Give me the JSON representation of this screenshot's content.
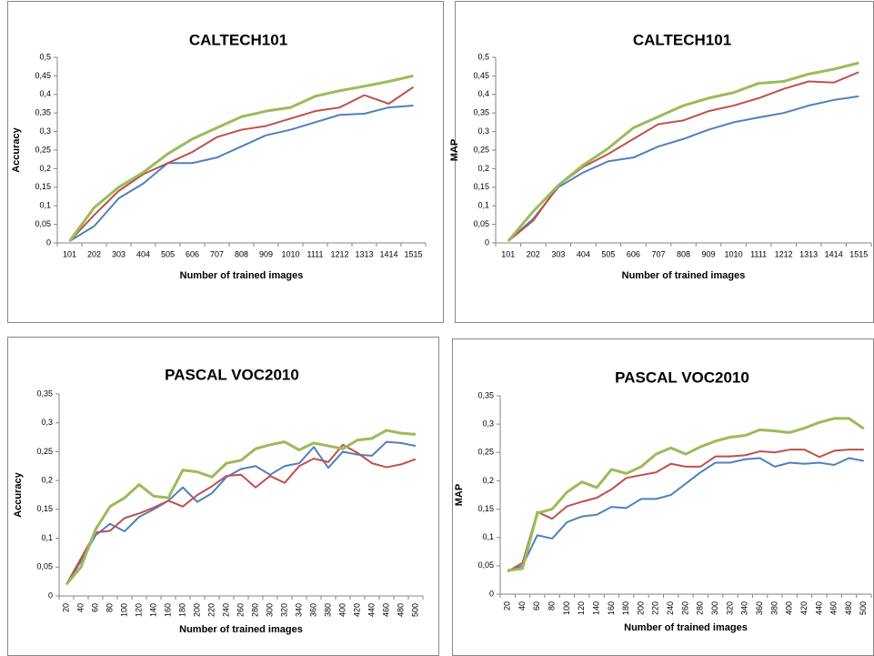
{
  "chart_data": [
    {
      "type": "line",
      "title": "CALTECH101",
      "x_label": "Number of trained images",
      "y_label": "Accuracy",
      "categories": [
        101,
        202,
        303,
        404,
        505,
        606,
        707,
        808,
        909,
        1010,
        1111,
        1212,
        1313,
        1414,
        1515
      ],
      "series": [
        {
          "color": "#4f81bd",
          "values": [
            0.005,
            0.045,
            0.12,
            0.16,
            0.215,
            0.215,
            0.23,
            0.26,
            0.29,
            0.305,
            0.325,
            0.345,
            0.348,
            0.365,
            0.37
          ]
        },
        {
          "color": "#c0504d",
          "values": [
            0.005,
            0.075,
            0.14,
            0.185,
            0.215,
            0.245,
            0.285,
            0.305,
            0.315,
            0.335,
            0.355,
            0.365,
            0.398,
            0.375,
            0.42
          ]
        },
        {
          "color": "#9bbb59",
          "values": [
            0.005,
            0.095,
            0.15,
            0.19,
            0.24,
            0.28,
            0.31,
            0.34,
            0.355,
            0.365,
            0.395,
            0.41,
            0.422,
            0.435,
            0.45
          ]
        }
      ],
      "ylim": [
        0,
        0.5
      ],
      "yticks": [
        0,
        {
          "value": 0.05,
          "label": "0,05"
        },
        {
          "value": 0.1,
          "label": "0,1"
        },
        {
          "value": 0.15,
          "label": "0,15"
        },
        {
          "value": 0.2,
          "label": "0,2"
        },
        {
          "value": 0.25,
          "label": "0,25"
        },
        {
          "value": 0.3,
          "label": "0,3"
        },
        {
          "value": 0.35,
          "label": "0,35"
        },
        {
          "value": 0.4,
          "label": "0,4"
        },
        {
          "value": 0.45,
          "label": "0,45"
        },
        {
          "value": 0.5,
          "label": "0,5"
        }
      ]
    },
    {
      "type": "line",
      "title": "CALTECH101",
      "x_label": "Number of trained images",
      "y_label": "MAP",
      "categories": [
        101,
        202,
        303,
        404,
        505,
        606,
        707,
        808,
        909,
        1010,
        1111,
        1212,
        1313,
        1414,
        1515
      ],
      "series": [
        {
          "color": "#4f81bd",
          "values": [
            0.005,
            0.065,
            0.15,
            0.19,
            0.22,
            0.23,
            0.26,
            0.28,
            0.305,
            0.325,
            0.338,
            0.35,
            0.37,
            0.385,
            0.395
          ]
        },
        {
          "color": "#c0504d",
          "values": [
            0.005,
            0.06,
            0.155,
            0.205,
            0.24,
            0.28,
            0.32,
            0.33,
            0.355,
            0.37,
            0.39,
            0.415,
            0.435,
            0.432,
            0.46
          ]
        },
        {
          "color": "#9bbb59",
          "values": [
            0.005,
            0.085,
            0.155,
            0.21,
            0.255,
            0.31,
            0.34,
            0.37,
            0.39,
            0.405,
            0.43,
            0.435,
            0.455,
            0.468,
            0.485
          ]
        }
      ],
      "ylim": [
        0,
        0.5
      ],
      "yticks": [
        0,
        {
          "value": 0.05,
          "label": "0,05"
        },
        {
          "value": 0.1,
          "label": "0,1"
        },
        {
          "value": 0.15,
          "label": "0,15"
        },
        {
          "value": 0.2,
          "label": "0,2"
        },
        {
          "value": 0.25,
          "label": "0,25"
        },
        {
          "value": 0.3,
          "label": "0,3"
        },
        {
          "value": 0.35,
          "label": "0,35"
        },
        {
          "value": 0.4,
          "label": "0,4"
        },
        {
          "value": 0.45,
          "label": "0,45"
        },
        {
          "value": 0.5,
          "label": "0,5"
        }
      ]
    },
    {
      "type": "line",
      "title": "PASCAL VOC2010",
      "x_label": "Number of trained images",
      "y_label": "Accuracy",
      "categories": [
        20,
        40,
        60,
        80,
        100,
        120,
        140,
        160,
        180,
        200,
        220,
        240,
        260,
        280,
        300,
        320,
        340,
        360,
        380,
        400,
        420,
        440,
        460,
        480,
        500
      ],
      "series": [
        {
          "color": "#4f81bd",
          "values": [
            0.02,
            0.06,
            0.105,
            0.125,
            0.112,
            0.137,
            0.15,
            0.165,
            0.188,
            0.163,
            0.178,
            0.206,
            0.22,
            0.225,
            0.21,
            0.225,
            0.23,
            0.258,
            0.222,
            0.25,
            0.245,
            0.243,
            0.267,
            0.265,
            0.26
          ]
        },
        {
          "color": "#c0504d",
          "values": [
            0.02,
            0.065,
            0.11,
            0.113,
            0.135,
            0.143,
            0.153,
            0.165,
            0.155,
            0.175,
            0.19,
            0.208,
            0.21,
            0.188,
            0.208,
            0.196,
            0.225,
            0.238,
            0.232,
            0.262,
            0.248,
            0.23,
            0.223,
            0.228,
            0.237
          ]
        },
        {
          "color": "#9bbb59",
          "values": [
            0.02,
            0.05,
            0.115,
            0.155,
            0.17,
            0.193,
            0.173,
            0.17,
            0.218,
            0.215,
            0.206,
            0.23,
            0.235,
            0.255,
            0.262,
            0.267,
            0.253,
            0.265,
            0.26,
            0.255,
            0.27,
            0.273,
            0.287,
            0.282,
            0.28
          ]
        }
      ],
      "ylim": [
        0,
        0.35
      ],
      "yticks": [
        0,
        {
          "value": 0.05,
          "label": "0,05"
        },
        {
          "value": 0.1,
          "label": "0,1"
        },
        {
          "value": 0.15,
          "label": "0,15"
        },
        {
          "value": 0.2,
          "label": "0,2"
        },
        {
          "value": 0.25,
          "label": "0,25"
        },
        {
          "value": 0.3,
          "label": "0,3"
        },
        {
          "value": 0.35,
          "label": "0,35"
        }
      ]
    },
    {
      "type": "line",
      "title": "PASCAL VOC2010",
      "x_label": "Number of trained images",
      "y_label": "MAP",
      "categories": [
        20,
        40,
        60,
        80,
        100,
        120,
        140,
        160,
        180,
        200,
        220,
        240,
        260,
        280,
        300,
        320,
        340,
        360,
        380,
        400,
        420,
        440,
        460,
        480,
        500
      ],
      "series": [
        {
          "color": "#4f81bd",
          "values": [
            0.04,
            0.05,
            0.104,
            0.098,
            0.127,
            0.137,
            0.14,
            0.154,
            0.152,
            0.168,
            0.168,
            0.175,
            0.195,
            0.215,
            0.232,
            0.232,
            0.238,
            0.24,
            0.225,
            0.232,
            0.23,
            0.232,
            0.228,
            0.24,
            0.235
          ]
        },
        {
          "color": "#c0504d",
          "values": [
            0.04,
            0.055,
            0.145,
            0.133,
            0.155,
            0.163,
            0.17,
            0.185,
            0.205,
            0.21,
            0.215,
            0.23,
            0.225,
            0.225,
            0.243,
            0.243,
            0.245,
            0.252,
            0.25,
            0.255,
            0.255,
            0.242,
            0.253,
            0.255,
            0.255
          ]
        },
        {
          "color": "#9bbb59",
          "values": [
            0.042,
            0.045,
            0.143,
            0.15,
            0.18,
            0.198,
            0.188,
            0.22,
            0.213,
            0.225,
            0.247,
            0.258,
            0.247,
            0.26,
            0.27,
            0.277,
            0.28,
            0.29,
            0.288,
            0.285,
            0.293,
            0.303,
            0.31,
            0.31,
            0.292
          ]
        }
      ],
      "ylim": [
        0,
        0.35
      ],
      "yticks": [
        0,
        {
          "value": 0.05,
          "label": "0,05"
        },
        {
          "value": 0.1,
          "label": "0,1"
        },
        {
          "value": 0.15,
          "label": "0,15"
        },
        {
          "value": 0.2,
          "label": "0,2"
        },
        {
          "value": 0.25,
          "label": "0,25"
        },
        {
          "value": 0.3,
          "label": "0,3"
        },
        {
          "value": 0.35,
          "label": "0,35"
        }
      ]
    }
  ]
}
